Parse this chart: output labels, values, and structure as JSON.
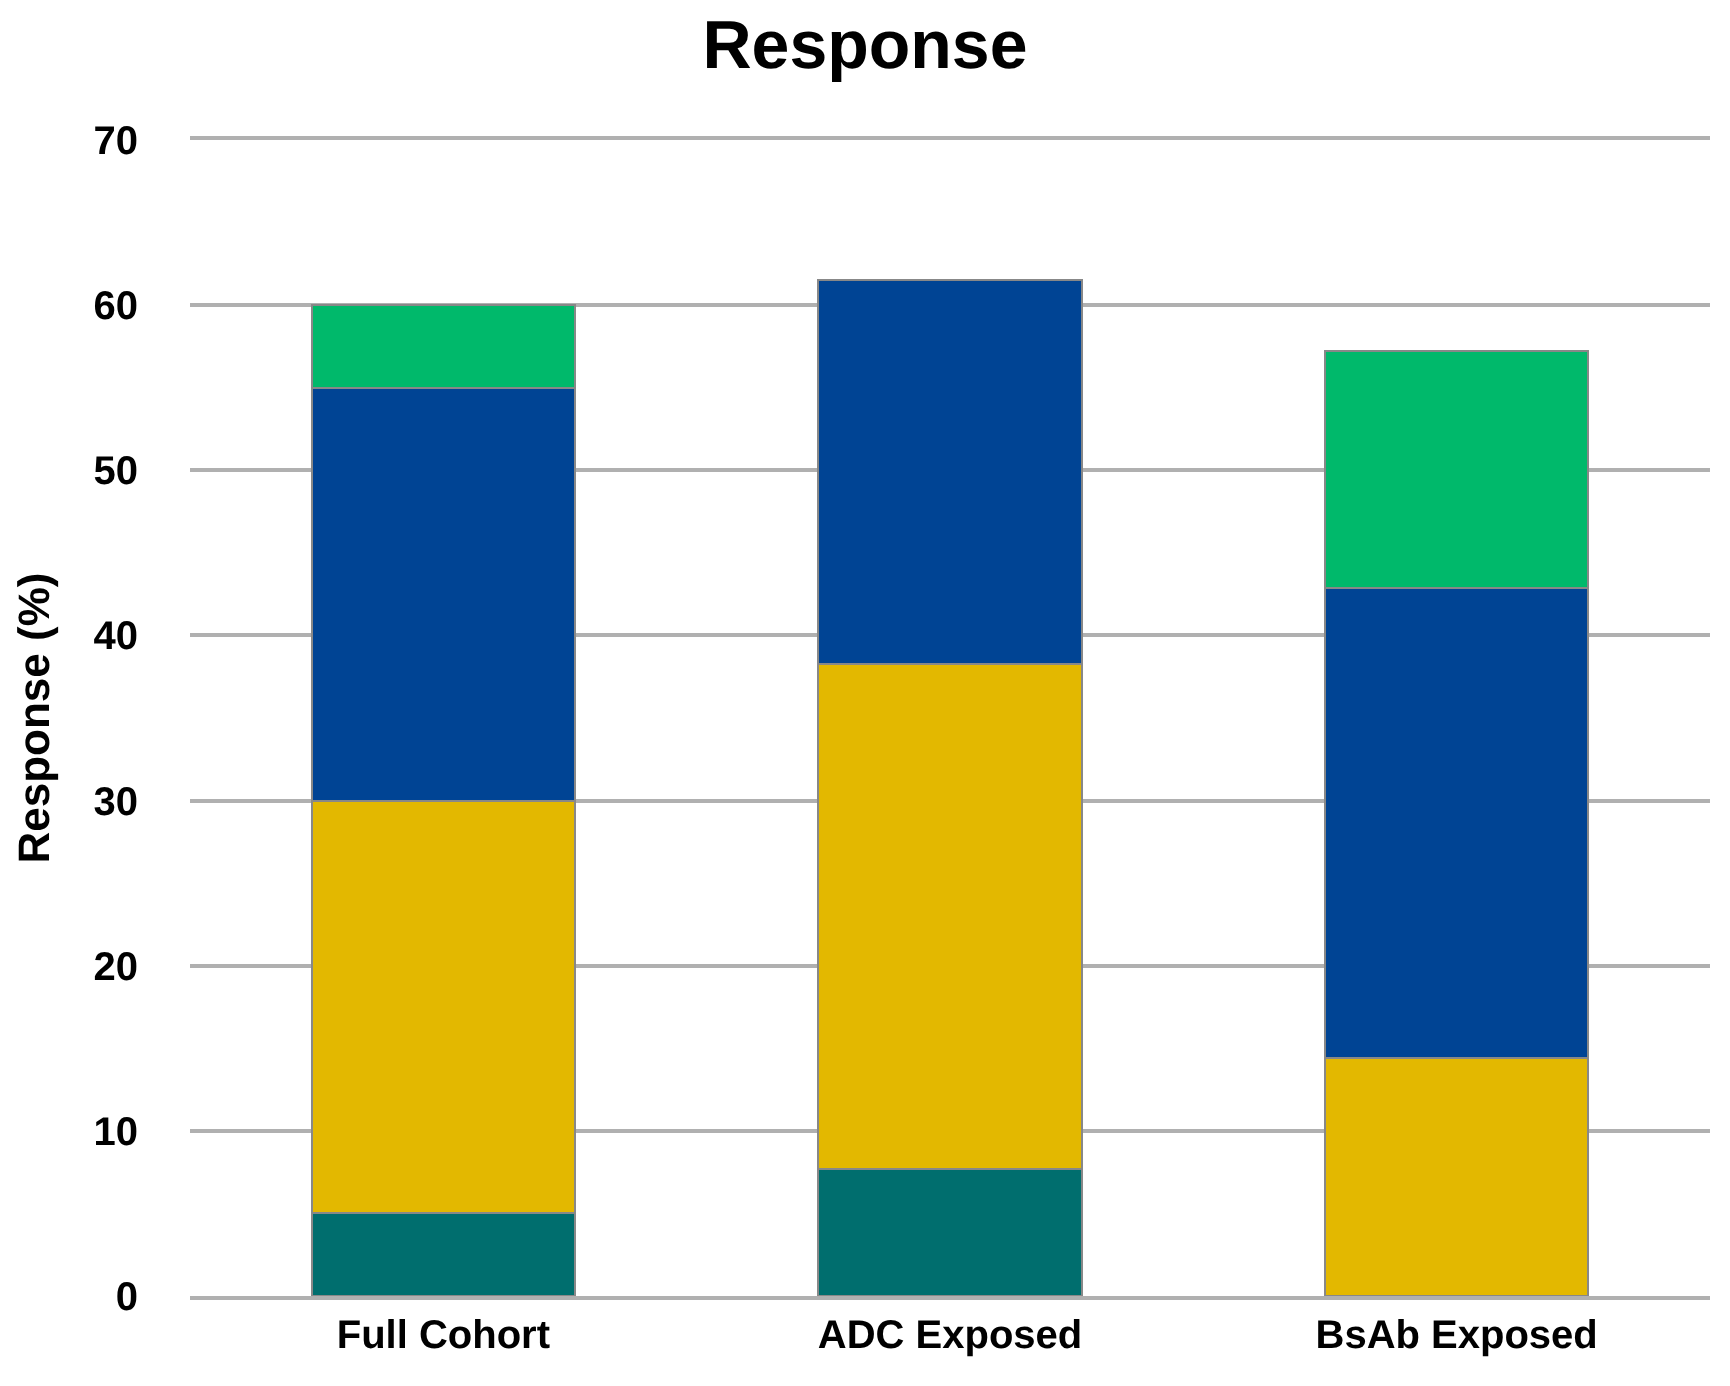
{
  "chart_data": {
    "type": "bar",
    "title": "Response",
    "ylabel": "Response (%)",
    "stacked": true,
    "categories": [
      "Full Cohort",
      "ADC Exposed",
      "BsAb Exposed"
    ],
    "series": [
      {
        "color": "#006e6e",
        "values": [
          5,
          7.7,
          null
        ]
      },
      {
        "color": "#e3b800",
        "values": [
          25,
          30.6,
          14.4
        ]
      },
      {
        "color": "#004494",
        "values": [
          25,
          23.2,
          28.5
        ]
      },
      {
        "color": "#00b96b",
        "values": [
          5,
          null,
          14.3
        ]
      }
    ],
    "ylim": [
      0,
      70
    ],
    "yticks": [
      0,
      10,
      20,
      30,
      40,
      50,
      60,
      70
    ],
    "grid": "y"
  }
}
